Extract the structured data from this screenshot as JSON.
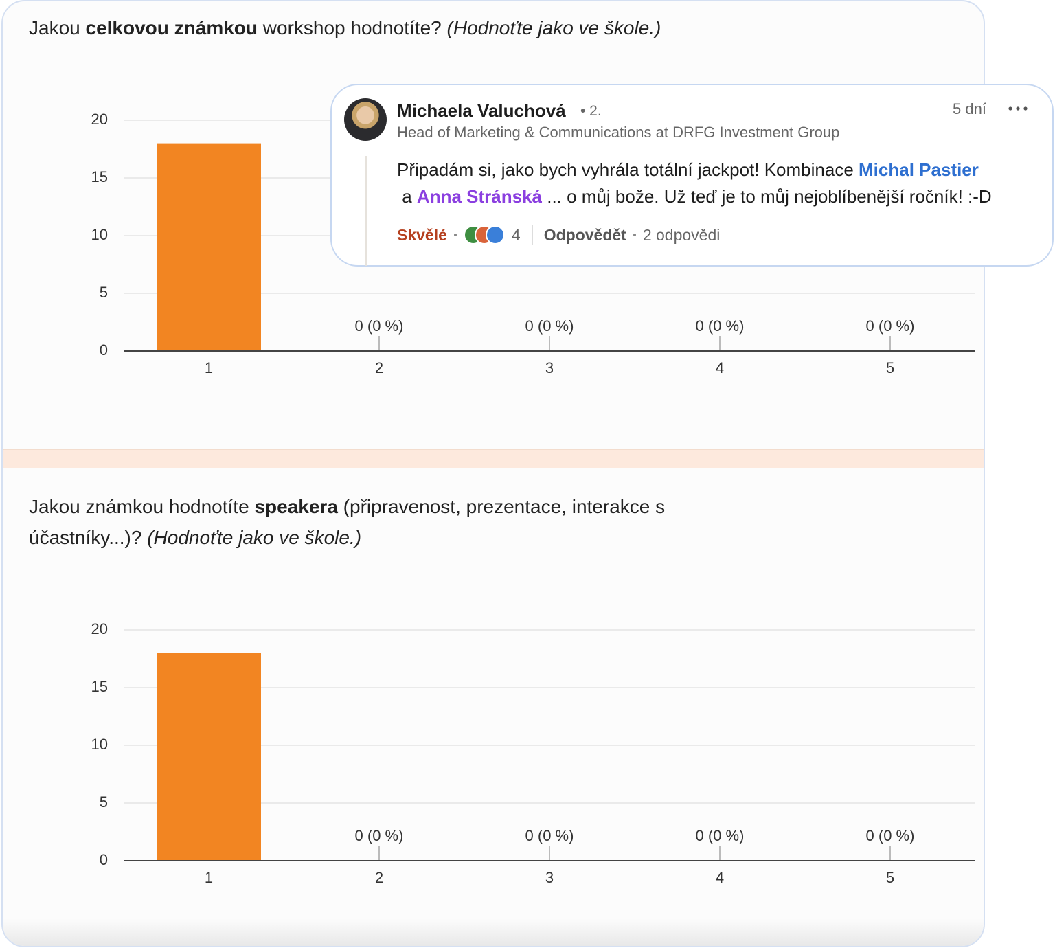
{
  "chart_data": [
    {
      "type": "bar",
      "title": [
        "Jakou ",
        "celkovou známkou",
        " workshop hodnotíte? ",
        "(Hodnoťte jako ve škole.)"
      ],
      "categories": [
        "1",
        "2",
        "3",
        "4",
        "5"
      ],
      "values": [
        18,
        0,
        0,
        0,
        0
      ],
      "value_labels": [
        null,
        "0 (0 %)",
        "0 (0 %)",
        "0 (0 %)",
        "0 (0 %)"
      ],
      "color": "#f28522",
      "ylim": [
        0,
        20
      ],
      "yticks": [
        0,
        5,
        10,
        15,
        20
      ],
      "grid": true
    },
    {
      "type": "bar",
      "title": [
        "Jakou známkou hodnotíte ",
        "speakera",
        " (připravenost, prezentace, interakce s účastníky...)? ",
        "(Hodnoťte jako ve škole.)"
      ],
      "categories": [
        "1",
        "2",
        "3",
        "4",
        "5"
      ],
      "values": [
        18,
        0,
        0,
        0,
        0
      ],
      "value_labels": [
        null,
        "0 (0 %)",
        "0 (0 %)",
        "0 (0 %)",
        "0 (0 %)"
      ],
      "color": "#f28522",
      "ylim": [
        0,
        20
      ],
      "yticks": [
        0,
        5,
        10,
        15,
        20
      ],
      "grid": true
    }
  ],
  "comment": {
    "author": "Michaela Valuchová",
    "degree": "• 2.",
    "headline": "Head of Marketing & Communications at DRFG Investment Group",
    "time": "5 dní",
    "text": [
      "Připadám si, jako bych vyhrála totální jackpot! Kombinace ",
      "Michal Pastier",
      " a ",
      "Anna Stránská",
      " ... o můj bože. Už teď je to můj nejoblíbenější ročník! :-D"
    ],
    "reaction": "Skvělé",
    "reaction_count": 4,
    "reply": "Odpovědět",
    "replies": "2 odpovědi"
  }
}
